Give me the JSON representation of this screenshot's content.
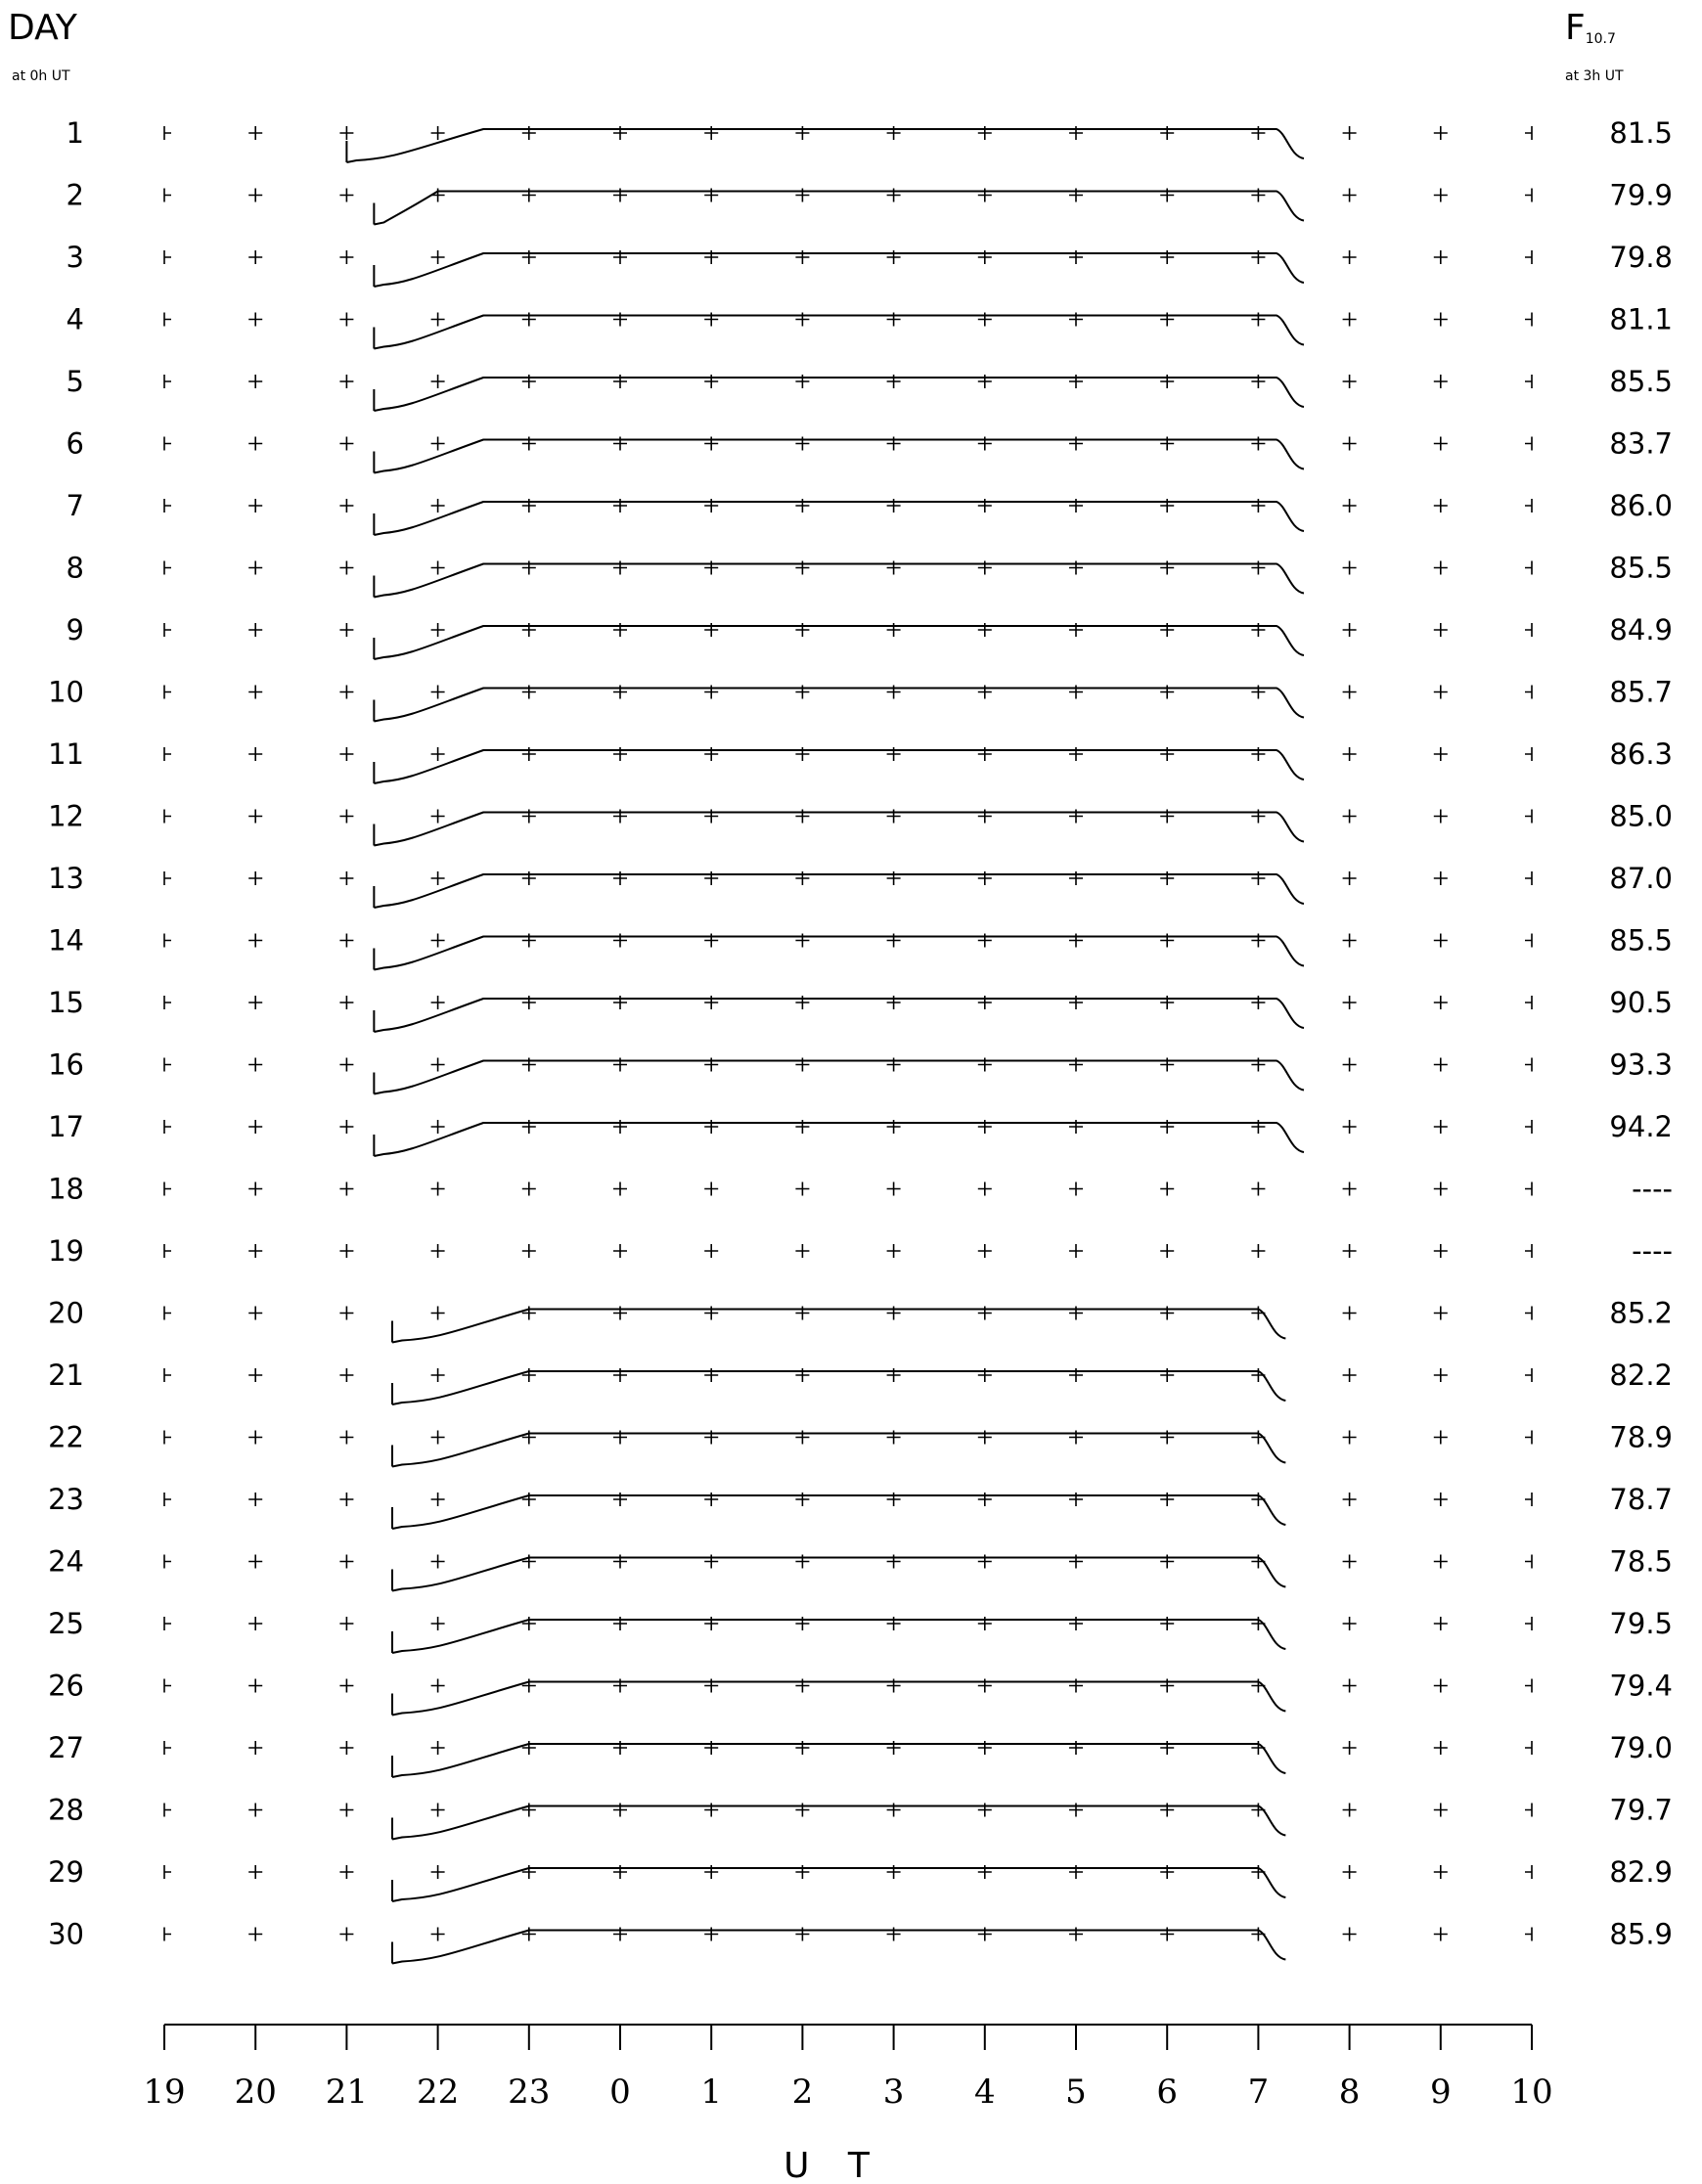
{
  "header": {
    "left_title": "DAY",
    "left_subtitle": "at 0h UT",
    "right_title": "F10.7",
    "right_title_main": "F",
    "right_title_sub": "10.7",
    "right_subtitle": "at 3h UT"
  },
  "chart_data": {
    "type": "line",
    "xlabel": "U T",
    "x_ticks": [
      "19",
      "20",
      "21",
      "22",
      "23",
      "0",
      "1",
      "2",
      "3",
      "4",
      "5",
      "6",
      "7",
      "8",
      "9",
      "10"
    ],
    "x_range_hours_ut": [
      19,
      34
    ],
    "days": [
      "1",
      "2",
      "3",
      "4",
      "5",
      "6",
      "7",
      "8",
      "9",
      "10",
      "11",
      "12",
      "13",
      "14",
      "15",
      "16",
      "17",
      "18",
      "19",
      "20",
      "21",
      "22",
      "23",
      "24",
      "25",
      "26",
      "27",
      "28",
      "29",
      "30"
    ],
    "f107": [
      "81.5",
      "79.9",
      "79.8",
      "81.1",
      "85.5",
      "83.7",
      "86.0",
      "85.5",
      "84.9",
      "85.7",
      "86.3",
      "85.0",
      "87.0",
      "85.5",
      "90.5",
      "93.3",
      "94.2",
      "----",
      "----",
      "85.2",
      "82.2",
      "78.9",
      "78.7",
      "78.5",
      "79.5",
      "79.4",
      "79.0",
      "79.7",
      "82.9",
      "85.9"
    ],
    "traces": [
      {
        "day": "1",
        "start": 21.0,
        "rise_end": 22.5,
        "fall_start": 7.2,
        "end": 7.5,
        "has_data": true
      },
      {
        "day": "2",
        "start": 21.3,
        "rise_end": 22.0,
        "fall_start": 7.2,
        "end": 7.5,
        "has_data": true
      },
      {
        "day": "3",
        "start": 21.3,
        "rise_end": 22.5,
        "fall_start": 7.2,
        "end": 7.5,
        "has_data": true
      },
      {
        "day": "4",
        "start": 21.3,
        "rise_end": 22.5,
        "fall_start": 7.2,
        "end": 7.5,
        "has_data": true
      },
      {
        "day": "5",
        "start": 21.3,
        "rise_end": 22.5,
        "fall_start": 7.2,
        "end": 7.5,
        "has_data": true
      },
      {
        "day": "6",
        "start": 21.3,
        "rise_end": 22.5,
        "fall_start": 7.2,
        "end": 7.5,
        "has_data": true
      },
      {
        "day": "7",
        "start": 21.3,
        "rise_end": 22.5,
        "fall_start": 7.2,
        "end": 7.5,
        "has_data": true
      },
      {
        "day": "8",
        "start": 21.3,
        "rise_end": 22.5,
        "fall_start": 7.2,
        "end": 7.5,
        "has_data": true
      },
      {
        "day": "9",
        "start": 21.3,
        "rise_end": 22.5,
        "fall_start": 7.2,
        "end": 7.5,
        "has_data": true
      },
      {
        "day": "10",
        "start": 21.3,
        "rise_end": 22.5,
        "fall_start": 7.2,
        "end": 7.5,
        "has_data": true
      },
      {
        "day": "11",
        "start": 21.3,
        "rise_end": 22.5,
        "fall_start": 7.2,
        "end": 7.5,
        "has_data": true
      },
      {
        "day": "12",
        "start": 21.3,
        "rise_end": 22.5,
        "fall_start": 7.2,
        "end": 7.5,
        "has_data": true
      },
      {
        "day": "13",
        "start": 21.3,
        "rise_end": 22.5,
        "fall_start": 7.2,
        "end": 7.5,
        "has_data": true
      },
      {
        "day": "14",
        "start": 21.3,
        "rise_end": 22.5,
        "fall_start": 7.2,
        "end": 7.5,
        "has_data": true
      },
      {
        "day": "15",
        "start": 21.3,
        "rise_end": 22.5,
        "fall_start": 7.2,
        "end": 7.5,
        "has_data": true
      },
      {
        "day": "16",
        "start": 21.3,
        "rise_end": 22.5,
        "fall_start": 7.2,
        "end": 7.5,
        "has_data": true
      },
      {
        "day": "17",
        "start": 21.3,
        "rise_end": 22.5,
        "fall_start": 7.2,
        "end": 7.5,
        "has_data": true
      },
      {
        "day": "18",
        "start": 21.3,
        "rise_end": 22.5,
        "fall_start": 7.2,
        "end": 7.5,
        "has_data": false
      },
      {
        "day": "19",
        "start": 21.3,
        "rise_end": 22.5,
        "fall_start": 7.2,
        "end": 7.5,
        "has_data": false
      },
      {
        "day": "20",
        "start": 21.5,
        "rise_end": 23.0,
        "fall_start": 7.0,
        "end": 7.3,
        "has_data": true
      },
      {
        "day": "21",
        "start": 21.5,
        "rise_end": 23.0,
        "fall_start": 7.0,
        "end": 7.3,
        "has_data": true
      },
      {
        "day": "22",
        "start": 21.5,
        "rise_end": 23.0,
        "fall_start": 7.0,
        "end": 7.3,
        "has_data": true
      },
      {
        "day": "23",
        "start": 21.5,
        "rise_end": 23.0,
        "fall_start": 7.0,
        "end": 7.3,
        "has_data": true
      },
      {
        "day": "24",
        "start": 21.5,
        "rise_end": 23.0,
        "fall_start": 7.0,
        "end": 7.3,
        "has_data": true
      },
      {
        "day": "25",
        "start": 21.5,
        "rise_end": 23.0,
        "fall_start": 7.0,
        "end": 7.3,
        "has_data": true
      },
      {
        "day": "26",
        "start": 21.5,
        "rise_end": 23.0,
        "fall_start": 7.0,
        "end": 7.3,
        "has_data": true
      },
      {
        "day": "27",
        "start": 21.5,
        "rise_end": 23.0,
        "fall_start": 7.0,
        "end": 7.3,
        "has_data": true
      },
      {
        "day": "28",
        "start": 21.5,
        "rise_end": 23.0,
        "fall_start": 7.0,
        "end": 7.3,
        "has_data": true
      },
      {
        "day": "29",
        "start": 21.5,
        "rise_end": 23.0,
        "fall_start": 7.0,
        "end": 7.3,
        "has_data": true
      },
      {
        "day": "30",
        "start": 21.5,
        "rise_end": 23.0,
        "fall_start": 7.0,
        "end": 7.3,
        "has_data": true
      }
    ]
  }
}
